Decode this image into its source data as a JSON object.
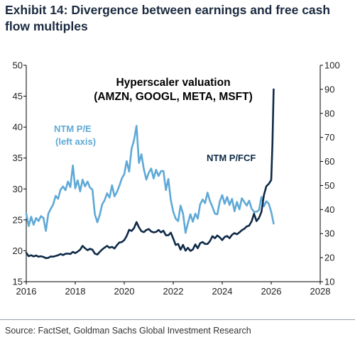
{
  "title": "Exhibit 14: Divergence between earnings and free cash flow multiples",
  "source": "Source: FactSet, Goldman Sachs Global Investment Research",
  "colors": {
    "pe": "#5fa9d6",
    "pfcf": "#0e2a47",
    "axis": "#000000"
  },
  "chart_data": {
    "type": "line",
    "title": "Hyperscaler valuation",
    "subtitle": "(AMZN, GOOGL, META, MSFT)",
    "xlim": [
      2016,
      2028
    ],
    "x_ticks": [
      "2016",
      "2018",
      "2020",
      "2022",
      "2024",
      "2026",
      "2028"
    ],
    "y_left": {
      "lim": [
        15,
        50
      ],
      "ticks": [
        "15",
        "20",
        "25",
        "30",
        "35",
        "40",
        "45",
        "50"
      ]
    },
    "y_right": {
      "lim": [
        10,
        100
      ],
      "ticks": [
        "10",
        "20",
        "30",
        "40",
        "50",
        "60",
        "70",
        "80",
        "90",
        "100"
      ]
    },
    "grid": false,
    "series": [
      {
        "name": "NTM P/E",
        "label_lines": [
          "NTM P/E",
          "(left axis)"
        ],
        "axis": "left",
        "x": [
          2016.0,
          2016.1,
          2016.2,
          2016.3,
          2016.4,
          2016.5,
          2016.6,
          2016.7,
          2016.8,
          2016.9,
          2017.0,
          2017.1,
          2017.2,
          2017.3,
          2017.4,
          2017.5,
          2017.6,
          2017.7,
          2017.8,
          2017.9,
          2018.0,
          2018.1,
          2018.2,
          2018.3,
          2018.4,
          2018.5,
          2018.6,
          2018.7,
          2018.8,
          2018.9,
          2019.0,
          2019.1,
          2019.2,
          2019.3,
          2019.4,
          2019.5,
          2019.6,
          2019.7,
          2019.8,
          2019.9,
          2020.0,
          2020.1,
          2020.2,
          2020.3,
          2020.4,
          2020.5,
          2020.6,
          2020.7,
          2020.8,
          2020.9,
          2021.0,
          2021.1,
          2021.2,
          2021.3,
          2021.4,
          2021.5,
          2021.6,
          2021.7,
          2021.8,
          2021.9,
          2022.0,
          2022.1,
          2022.2,
          2022.3,
          2022.4,
          2022.5,
          2022.6,
          2022.7,
          2022.8,
          2022.9,
          2023.0,
          2023.1,
          2023.2,
          2023.3,
          2023.4,
          2023.5,
          2023.6,
          2023.7,
          2023.8,
          2023.9,
          2024.0,
          2024.1,
          2024.2,
          2024.3,
          2024.4,
          2024.5,
          2024.6,
          2024.7,
          2024.8,
          2024.9,
          2025.0,
          2025.1,
          2025.2,
          2025.3,
          2025.4,
          2025.5,
          2025.6,
          2025.7,
          2025.8,
          2025.9,
          2026.0,
          2026.1
        ],
        "values": [
          26.0,
          24.0,
          25.5,
          24.2,
          25.3,
          24.8,
          25.6,
          25.3,
          23.2,
          26.0,
          26.8,
          27.5,
          28.9,
          28.4,
          29.9,
          30.4,
          29.8,
          31.2,
          30.3,
          33.8,
          30.1,
          31.4,
          29.6,
          31.5,
          30.4,
          31.2,
          30.2,
          29.9,
          25.9,
          24.6,
          25.8,
          27.5,
          28.2,
          29.3,
          28.6,
          30.6,
          28.8,
          29.5,
          30.5,
          31.7,
          32.4,
          34.5,
          32.8,
          36.5,
          37.9,
          40.2,
          34.2,
          35.6,
          33.2,
          31.5,
          32.6,
          33.3,
          31.7,
          33.1,
          32.1,
          32.9,
          32.9,
          29.8,
          31.6,
          28.2,
          26.3,
          25.2,
          24.8,
          27.3,
          26.0,
          22.9,
          24.5,
          25.9,
          24.7,
          26.0,
          25.2,
          27.5,
          28.3,
          27.7,
          29.4,
          28.0,
          27.1,
          26.0,
          25.9,
          28.0,
          29.0,
          27.6,
          28.7,
          27.4,
          28.4,
          26.4,
          27.9,
          26.7,
          28.5,
          27.9,
          27.3,
          28.1,
          26.8,
          26.3,
          26.3,
          26.6,
          28.7,
          27.2,
          28.0,
          27.6,
          26.3,
          24.4
        ]
      },
      {
        "name": "NTM P/FCF",
        "label_lines": [
          "NTM P/FCF"
        ],
        "axis": "right",
        "x": [
          2016.0,
          2016.1,
          2016.2,
          2016.3,
          2016.4,
          2016.5,
          2016.6,
          2016.7,
          2016.8,
          2016.9,
          2017.0,
          2017.1,
          2017.2,
          2017.3,
          2017.4,
          2017.5,
          2017.6,
          2017.7,
          2017.8,
          2017.9,
          2018.0,
          2018.1,
          2018.2,
          2018.3,
          2018.4,
          2018.5,
          2018.6,
          2018.7,
          2018.8,
          2018.9,
          2019.0,
          2019.1,
          2019.2,
          2019.3,
          2019.4,
          2019.5,
          2019.6,
          2019.7,
          2019.8,
          2019.9,
          2020.0,
          2020.1,
          2020.2,
          2020.3,
          2020.4,
          2020.5,
          2020.6,
          2020.7,
          2020.8,
          2020.9,
          2021.0,
          2021.1,
          2021.2,
          2021.3,
          2021.4,
          2021.5,
          2021.6,
          2021.7,
          2021.8,
          2021.9,
          2022.0,
          2022.1,
          2022.2,
          2022.3,
          2022.4,
          2022.5,
          2022.6,
          2022.7,
          2022.8,
          2022.9,
          2023.0,
          2023.1,
          2023.2,
          2023.3,
          2023.4,
          2023.5,
          2023.6,
          2023.7,
          2023.8,
          2023.9,
          2024.0,
          2024.1,
          2024.2,
          2024.3,
          2024.4,
          2024.5,
          2024.6,
          2024.7,
          2024.8,
          2024.9,
          2025.0,
          2025.1,
          2025.2,
          2025.3,
          2025.4,
          2025.5,
          2025.6,
          2025.7,
          2025.8,
          2025.9,
          2026.0,
          2026.05,
          2026.1
        ],
        "values": [
          22.0,
          20.6,
          21.0,
          20.5,
          20.9,
          20.4,
          20.6,
          20.3,
          19.8,
          19.9,
          20.5,
          20.4,
          20.7,
          21.0,
          21.5,
          21.1,
          21.6,
          21.7,
          21.5,
          22.4,
          21.9,
          22.5,
          23.3,
          24.9,
          23.9,
          23.1,
          23.7,
          23.3,
          21.7,
          21.3,
          22.4,
          23.4,
          24.2,
          24.9,
          24.1,
          24.5,
          23.8,
          25.2,
          26.3,
          26.5,
          27.3,
          29.0,
          31.6,
          31.1,
          32.3,
          34.8,
          32.6,
          31.0,
          30.6,
          31.5,
          31.9,
          30.9,
          30.5,
          30.7,
          31.5,
          30.5,
          31.2,
          29.3,
          29.3,
          30.4,
          27.9,
          25.3,
          25.7,
          23.3,
          25.3,
          22.9,
          24.1,
          22.8,
          23.4,
          25.5,
          23.9,
          26.0,
          26.5,
          25.7,
          25.7,
          26.9,
          28.9,
          28.1,
          29.2,
          28.4,
          27.3,
          28.6,
          29.0,
          28.1,
          29.5,
          30.2,
          29.7,
          30.5,
          31.4,
          32.0,
          33.0,
          33.3,
          35.1,
          38.3,
          35.2,
          36.5,
          39.0,
          46.0,
          49.7,
          50.7,
          52.3,
          67.0,
          90.0
        ]
      }
    ]
  }
}
